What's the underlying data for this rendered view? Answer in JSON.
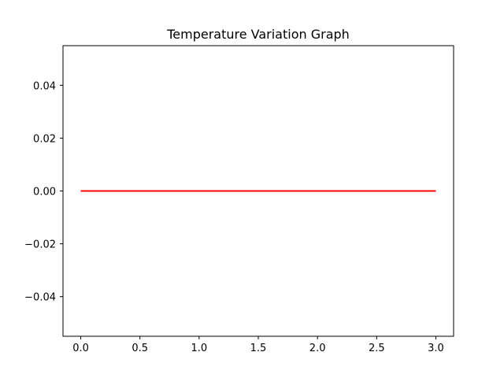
{
  "chart_data": {
    "type": "line",
    "title": "Temperature Variation Graph",
    "xlabel": "",
    "ylabel": "",
    "xlim": [
      -0.15,
      3.15
    ],
    "ylim": [
      -0.055,
      0.055
    ],
    "x_ticks": [
      0.0,
      0.5,
      1.0,
      1.5,
      2.0,
      2.5,
      3.0
    ],
    "x_tick_labels": [
      "0.0",
      "0.5",
      "1.0",
      "1.5",
      "2.0",
      "2.5",
      "3.0"
    ],
    "y_ticks": [
      0.04,
      0.02,
      0.0,
      -0.02,
      -0.04
    ],
    "y_tick_labels": [
      "0.04",
      "0.02",
      "0.00",
      "−0.02",
      "−0.04"
    ],
    "grid": false,
    "series": [
      {
        "color": "#ff0000",
        "x": [
          0,
          3
        ],
        "y": [
          0,
          0
        ]
      }
    ]
  }
}
